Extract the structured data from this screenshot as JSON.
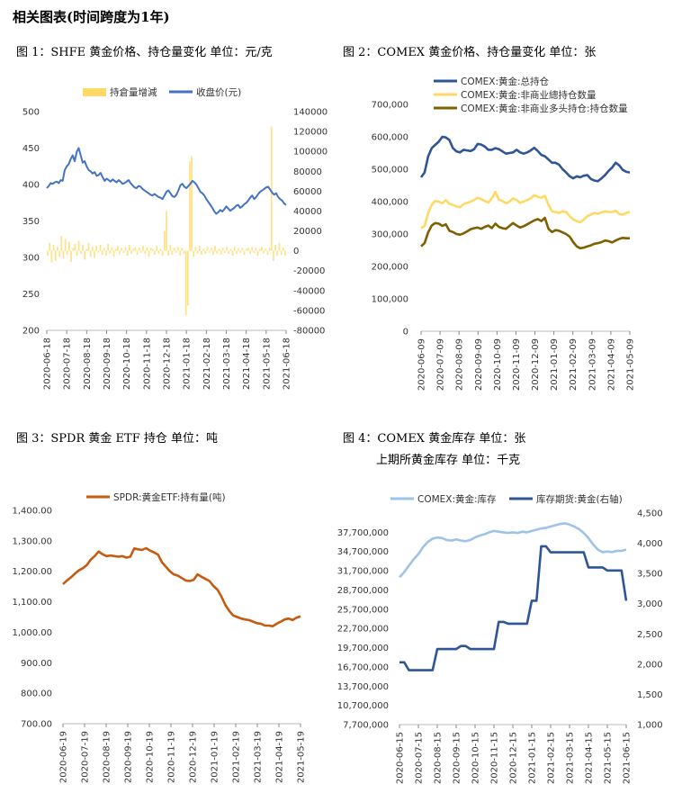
{
  "section_title": "相关图表(时间跨度为1年)",
  "captions": {
    "c1": "图 1：SHFE 黄金价格、持仓量变化   单位：元/克",
    "c2": "图 2：COMEX 黄金价格、持仓量变化   单位：张",
    "c3": "图 3：SPDR 黄金 ETF 持仓   单位：吨",
    "c4a": "图 4：COMEX 黄金库存   单位：张",
    "c4b": "上期所黄金库存   单位：千克"
  },
  "chart_data": [
    {
      "id": "fig1",
      "type": "line+bar",
      "title": "图 1：SHFE 黄金价格、持仓量变化   单位：元/克",
      "ylim_left": [
        200,
        500
      ],
      "ylim_right": [
        -80000,
        140000
      ],
      "left_ticks": [
        "200",
        "250",
        "300",
        "350",
        "400",
        "450",
        "500"
      ],
      "right_ticks": [
        "-80000",
        "-60000",
        "-40000",
        "-20000",
        "0",
        "20000",
        "40000",
        "60000",
        "80000",
        "100000",
        "120000",
        "140000"
      ],
      "x_ticks": [
        "2020-06-18",
        "2020-07-18",
        "2020-08-18",
        "2020-09-18",
        "2020-10-18",
        "2020-11-18",
        "2020-12-18",
        "2021-01-18",
        "2021-02-18",
        "2021-03-18",
        "2021-04-18",
        "2021-05-18",
        "2021-06-18"
      ],
      "series": [
        {
          "name": "持倉量增減",
          "axis": "right",
          "kind": "bar",
          "color": "#FFD966",
          "values": [
            -5000,
            8000,
            -12000,
            6000,
            -10000,
            4000,
            -6000,
            15000,
            -8000,
            12000,
            -4000,
            9000,
            -11000,
            3000,
            7000,
            -5000,
            10000,
            -3000,
            6000,
            -9000,
            2000,
            8000,
            -6000,
            4000,
            -7000,
            5000,
            -2000,
            6000,
            -4000,
            3000,
            -5000,
            7000,
            -3000,
            4000,
            -6000,
            2000,
            5000,
            -4000,
            3000,
            -2000,
            4000,
            -5000,
            6000,
            -3000,
            2000,
            4000,
            -4000,
            3000,
            -2000,
            5000,
            -3000,
            4000,
            -6000,
            3000,
            2000,
            -4000,
            5000,
            -3000,
            2000,
            -5000,
            20000,
            40000,
            -5000,
            6000,
            -4000,
            3000,
            -2000,
            4000,
            -5000,
            3000,
            -3000,
            -65000,
            -55000,
            90000,
            95000,
            -6000,
            4000,
            -3000,
            5000,
            -4000,
            2000,
            -3000,
            4000,
            -2000,
            3000,
            -4000,
            5000,
            -3000,
            2000,
            -4000,
            3000,
            -2000,
            4000,
            -3000,
            2000,
            -5000,
            4000,
            -3000,
            2000,
            -2000,
            3000,
            -4000,
            2000,
            3000,
            -3000,
            4000,
            -2000,
            3000,
            -5000,
            2000,
            4000,
            -3000,
            2000,
            -4000,
            3000,
            125000,
            -10000,
            6000,
            -5000,
            8000,
            -4000,
            3000,
            -5000
          ]
        },
        {
          "name": "收盘价(元)",
          "axis": "left",
          "kind": "line",
          "color": "#4472C4",
          "values": [
            395,
            398,
            402,
            401,
            403,
            404,
            402,
            406,
            405,
            420,
            425,
            428,
            435,
            440,
            432,
            445,
            450,
            440,
            430,
            432,
            425,
            420,
            418,
            415,
            417,
            412,
            413,
            416,
            410,
            405,
            408,
            406,
            404,
            407,
            405,
            403,
            406,
            404,
            401,
            402,
            404,
            406,
            402,
            399,
            396,
            395,
            398,
            397,
            394,
            392,
            390,
            388,
            386,
            385,
            387,
            385,
            383,
            382,
            380,
            385,
            390,
            392,
            388,
            384,
            383,
            386,
            392,
            399,
            401,
            397,
            395,
            398,
            401,
            405,
            403,
            400,
            395,
            390,
            388,
            385,
            380,
            376,
            372,
            368,
            363,
            360,
            362,
            365,
            363,
            366,
            370,
            367,
            364,
            366,
            368,
            371,
            372,
            368,
            370,
            373,
            375,
            378,
            382,
            385,
            380,
            383,
            387,
            390,
            392,
            394,
            396,
            397,
            393,
            389,
            386,
            388,
            383,
            380,
            378,
            374,
            372
          ]
        }
      ]
    },
    {
      "id": "fig2",
      "type": "line",
      "title": "图 2：COMEX 黄金价格、持仓量变化   单位：张",
      "ylim": [
        0,
        700000
      ],
      "y_ticks": [
        "0",
        "100,000",
        "200,000",
        "300,000",
        "400,000",
        "500,000",
        "600,000",
        "700,000"
      ],
      "x_ticks": [
        "2020-06-09",
        "2020-07-09",
        "2020-08-09",
        "2020-09-09",
        "2020-10-09",
        "2020-11-09",
        "2020-12-09",
        "2021-01-09",
        "2021-02-09",
        "2021-03-09",
        "2021-04-09",
        "2021-05-09"
      ],
      "series": [
        {
          "name": "COMEX:黄金:总持仓",
          "color": "#2F5597",
          "values": [
            475000,
            490000,
            540000,
            565000,
            575000,
            585000,
            600000,
            598000,
            590000,
            565000,
            555000,
            552000,
            560000,
            558000,
            556000,
            562000,
            578000,
            576000,
            570000,
            560000,
            560000,
            565000,
            562000,
            555000,
            548000,
            550000,
            552000,
            560000,
            552000,
            548000,
            552000,
            558000,
            566000,
            556000,
            544000,
            540000,
            530000,
            520000,
            520000,
            514000,
            500000,
            490000,
            478000,
            472000,
            478000,
            475000,
            480000,
            482000,
            470000,
            465000,
            463000,
            472000,
            482000,
            495000,
            505000,
            520000,
            512000,
            498000,
            492000,
            490000
          ]
        },
        {
          "name": "COMEX:黄金:非商业總持仓数量",
          "color": "#FFD966",
          "values": [
            318000,
            325000,
            365000,
            390000,
            402000,
            400000,
            395000,
            405000,
            393000,
            390000,
            385000,
            383000,
            392000,
            396000,
            400000,
            405000,
            412000,
            408000,
            402000,
            397000,
            410000,
            430000,
            406000,
            402000,
            395000,
            400000,
            410000,
            405000,
            396000,
            400000,
            405000,
            410000,
            420000,
            415000,
            412000,
            418000,
            390000,
            370000,
            368000,
            365000,
            370000,
            368000,
            355000,
            345000,
            340000,
            336000,
            345000,
            355000,
            360000,
            365000,
            362000,
            367000,
            370000,
            368000,
            368000,
            372000,
            362000,
            360000,
            365000,
            368000
          ]
        },
        {
          "name": "COMEX:黄金:非商业多头持仓:持仓数量",
          "color": "#7F6000",
          "values": [
            262000,
            272000,
            305000,
            326000,
            334000,
            332000,
            325000,
            330000,
            310000,
            306000,
            300000,
            298000,
            302000,
            308000,
            315000,
            318000,
            320000,
            316000,
            322000,
            326000,
            318000,
            332000,
            322000,
            318000,
            316000,
            325000,
            334000,
            326000,
            320000,
            324000,
            330000,
            336000,
            342000,
            346000,
            340000,
            350000,
            316000,
            306000,
            312000,
            310000,
            305000,
            300000,
            292000,
            275000,
            262000,
            256000,
            258000,
            262000,
            265000,
            270000,
            272000,
            275000,
            280000,
            278000,
            274000,
            280000,
            285000,
            288000,
            287000,
            287000
          ]
        }
      ]
    },
    {
      "id": "fig3",
      "type": "line",
      "title": "图 3：SPDR 黄金 ETF 持仓   单位：吨",
      "ylim": [
        700,
        1400
      ],
      "y_ticks": [
        "700.00",
        "800.00",
        "900.00",
        "1,000.00",
        "1,100.00",
        "1,200.00",
        "1,300.00",
        "1,400.00"
      ],
      "x_ticks": [
        "2020-06-19",
        "2020-07-19",
        "2020-08-19",
        "2020-09-19",
        "2020-10-19",
        "2020-11-19",
        "2020-12-19",
        "2021-01-19",
        "2021-02-19",
        "2021-03-19",
        "2021-04-19",
        "2021-05-19"
      ],
      "series": [
        {
          "name": "SPDR:黄金ETF:持有量(吨)",
          "color": "#C55A11",
          "values": [
            1158,
            1170,
            1180,
            1192,
            1203,
            1210,
            1220,
            1238,
            1250,
            1265,
            1256,
            1250,
            1252,
            1250,
            1248,
            1250,
            1245,
            1248,
            1275,
            1272,
            1270,
            1276,
            1268,
            1262,
            1255,
            1230,
            1215,
            1200,
            1190,
            1186,
            1178,
            1170,
            1168,
            1172,
            1190,
            1182,
            1175,
            1168,
            1152,
            1140,
            1118,
            1090,
            1070,
            1055,
            1050,
            1045,
            1042,
            1040,
            1035,
            1030,
            1028,
            1022,
            1022,
            1020,
            1028,
            1035,
            1042,
            1045,
            1040,
            1048,
            1052
          ]
        }
      ]
    },
    {
      "id": "fig4",
      "type": "line",
      "title": "图 4：COMEX 黄金库存   单位：张",
      "ylim_left": [
        7700000,
        40700000
      ],
      "ylim_right": [
        1000,
        4500
      ],
      "left_ticks": [
        "7,700,000",
        "10,700,000",
        "13,700,000",
        "16,700,000",
        "19,700,000",
        "22,700,000",
        "25,700,000",
        "28,700,000",
        "31,700,000",
        "34,700,000",
        "37,700,000"
      ],
      "right_ticks": [
        "1,000",
        "1,500",
        "2,000",
        "2,500",
        "3,000",
        "3,500",
        "4,000",
        "4,500"
      ],
      "x_ticks": [
        "2020-06-15",
        "2020-07-15",
        "2020-08-15",
        "2020-09-15",
        "2020-10-15",
        "2020-11-15",
        "2020-12-15",
        "2021-01-15",
        "2021-02-15",
        "2021-03-15",
        "2021-04-15",
        "2021-05-15",
        "2021-06-15"
      ],
      "series": [
        {
          "name": "COMEX:黄金:库存",
          "axis": "left",
          "color": "#9DC3E6",
          "values": [
            30700000,
            31500000,
            32500000,
            33500000,
            34300000,
            35400000,
            36200000,
            36700000,
            36900000,
            36800000,
            36500000,
            36400000,
            36600000,
            36400000,
            36300000,
            36500000,
            36900000,
            37200000,
            37400000,
            37700000,
            37900000,
            37800000,
            37700000,
            37600000,
            37700000,
            37600000,
            37800000,
            37700000,
            37900000,
            38100000,
            38300000,
            38400000,
            38600000,
            38800000,
            39000000,
            39100000,
            38900000,
            38600000,
            38200000,
            37600000,
            36800000,
            35800000,
            35000000,
            34600000,
            34700000,
            34600000,
            34800000,
            34800000,
            35000000
          ]
        },
        {
          "name": "库存期货:黄金(右轴)",
          "axis": "right",
          "color": "#2F5597",
          "values": [
            2030,
            2030,
            1900,
            1900,
            1900,
            1900,
            1900,
            1900,
            2250,
            2250,
            2250,
            2250,
            2250,
            2300,
            2300,
            2250,
            2250,
            2250,
            2250,
            2250,
            2250,
            2700,
            2700,
            2670,
            2670,
            2670,
            2670,
            2670,
            3050,
            3050,
            3950,
            3950,
            3850,
            3850,
            3850,
            3850,
            3850,
            3850,
            3850,
            3850,
            3600,
            3600,
            3600,
            3600,
            3550,
            3550,
            3550,
            3550,
            3050
          ]
        }
      ]
    }
  ]
}
